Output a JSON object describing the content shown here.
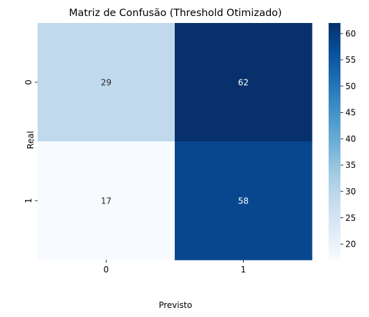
{
  "chart_data": {
    "type": "heatmap",
    "title": "Matriz de Confusão (Threshold Otimizado)",
    "xlabel": "Previsto",
    "ylabel": "Real",
    "x_categories": [
      "0",
      "1"
    ],
    "y_categories": [
      "0",
      "1"
    ],
    "values": [
      [
        29,
        62
      ],
      [
        17,
        58
      ]
    ],
    "colorbar": {
      "vmin": 17,
      "vmax": 62,
      "ticks": [
        20,
        25,
        30,
        35,
        40,
        45,
        50,
        55,
        60
      ]
    },
    "colormap": [
      "#f7fbff",
      "#deebf7",
      "#c6dbef",
      "#9ecae1",
      "#6baed6",
      "#4292c6",
      "#2171b5",
      "#08519c",
      "#08306b"
    ]
  }
}
